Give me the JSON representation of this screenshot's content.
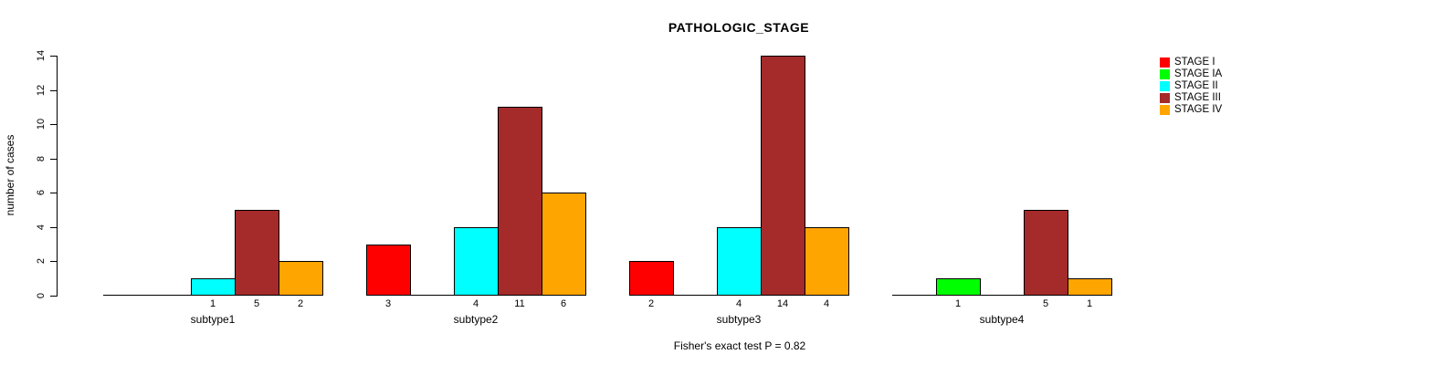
{
  "chart_data": {
    "type": "bar",
    "title": "PATHOLOGIC_STAGE",
    "ylabel": "number of cases",
    "footer": "Fisher's exact test P = 0.82",
    "ylim": [
      0,
      14
    ],
    "yticks": [
      0,
      2,
      4,
      6,
      8,
      10,
      12,
      14
    ],
    "categories": [
      "subtype1",
      "subtype2",
      "subtype3",
      "subtype4"
    ],
    "series": [
      {
        "name": "STAGE I",
        "color": "#FF0000",
        "values": [
          0,
          3,
          2,
          0
        ]
      },
      {
        "name": "STAGE IA",
        "color": "#00FF00",
        "values": [
          0,
          0,
          0,
          1
        ]
      },
      {
        "name": "STAGE II",
        "color": "#00FFFF",
        "values": [
          1,
          4,
          4,
          0
        ]
      },
      {
        "name": "STAGE III",
        "color": "#A52A2A",
        "values": [
          5,
          11,
          14,
          5
        ]
      },
      {
        "name": "STAGE IV",
        "color": "#FFA500",
        "values": [
          2,
          6,
          4,
          1
        ]
      }
    ],
    "bar_value_labels": "shown under each nonzero bar",
    "grid": false,
    "legend_position": "top-right",
    "axis_color": "#000000",
    "background_color": "#FFFFFF"
  }
}
